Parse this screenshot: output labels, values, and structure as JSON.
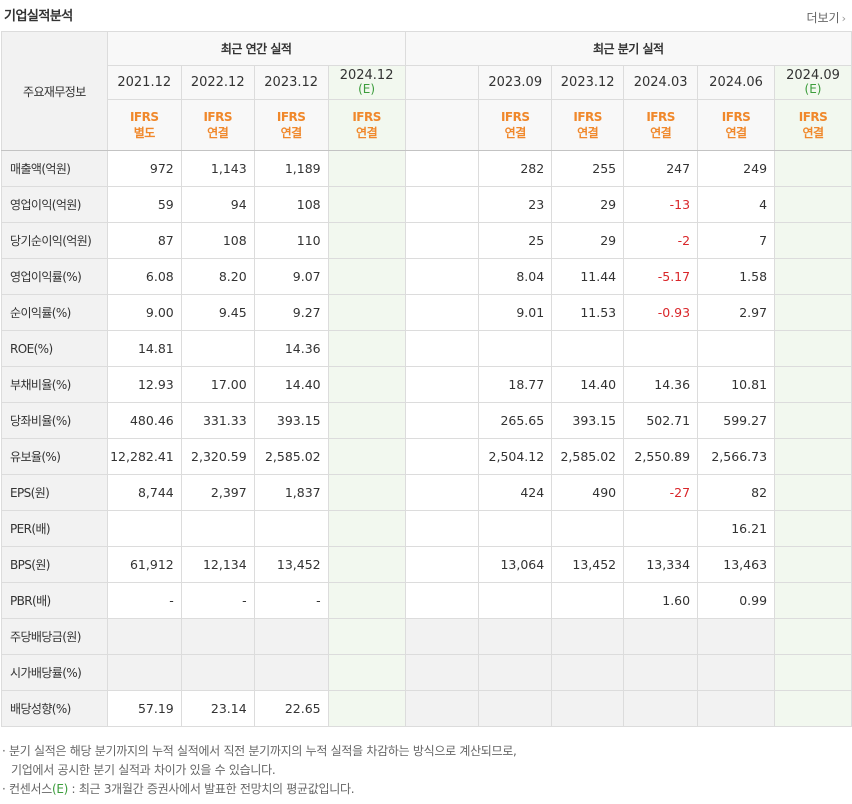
{
  "header": {
    "title": "기업실적분석",
    "more_label": "더보기",
    "more_arrow": "›"
  },
  "table": {
    "row_header_label": "주요재무정보",
    "annual_group": "최근 연간 실적",
    "quarter_group": "최근 분기 실적",
    "annual_periods": [
      {
        "period": "2021.12",
        "est": ""
      },
      {
        "period": "2022.12",
        "est": ""
      },
      {
        "period": "2023.12",
        "est": ""
      },
      {
        "period": "2024.12",
        "est": "(E)"
      }
    ],
    "quarter_periods": [
      {
        "period": "2023.09",
        "est": ""
      },
      {
        "period": "2023.12",
        "est": ""
      },
      {
        "period": "2024.03",
        "est": ""
      },
      {
        "period": "2024.06",
        "est": ""
      },
      {
        "period": "2024.09",
        "est": "(E)"
      }
    ],
    "annual_basis": [
      {
        "std": "IFRS",
        "type": "별도"
      },
      {
        "std": "IFRS",
        "type": "연결"
      },
      {
        "std": "IFRS",
        "type": "연결"
      },
      {
        "std": "IFRS",
        "type": "연결"
      }
    ],
    "quarter_basis": [
      {
        "std": "IFRS",
        "type": "연결"
      },
      {
        "std": "IFRS",
        "type": "연결"
      },
      {
        "std": "IFRS",
        "type": "연결"
      },
      {
        "std": "IFRS",
        "type": "연결"
      },
      {
        "std": "IFRS",
        "type": "연결"
      }
    ],
    "rows": [
      {
        "label": "매출액(억원)",
        "annual": [
          "972",
          "1,143",
          "1,189",
          ""
        ],
        "quarter": [
          "282",
          "255",
          "247",
          "249",
          ""
        ]
      },
      {
        "label": "영업이익(억원)",
        "annual": [
          "59",
          "94",
          "108",
          ""
        ],
        "quarter": [
          "23",
          "29",
          "-13",
          "4",
          ""
        ]
      },
      {
        "label": "당기순이익(억원)",
        "annual": [
          "87",
          "108",
          "110",
          ""
        ],
        "quarter": [
          "25",
          "29",
          "-2",
          "7",
          ""
        ]
      },
      {
        "label": "영업이익률(%)",
        "annual": [
          "6.08",
          "8.20",
          "9.07",
          ""
        ],
        "quarter": [
          "8.04",
          "11.44",
          "-5.17",
          "1.58",
          ""
        ]
      },
      {
        "label": "순이익률(%)",
        "annual": [
          "9.00",
          "9.45",
          "9.27",
          ""
        ],
        "quarter": [
          "9.01",
          "11.53",
          "-0.93",
          "2.97",
          ""
        ]
      },
      {
        "label": "ROE(%)",
        "annual": [
          "14.81",
          "",
          "14.36",
          ""
        ],
        "quarter": [
          "",
          "",
          "",
          "",
          ""
        ]
      },
      {
        "label": "부채비율(%)",
        "annual": [
          "12.93",
          "17.00",
          "14.40",
          ""
        ],
        "quarter": [
          "18.77",
          "14.40",
          "14.36",
          "10.81",
          ""
        ]
      },
      {
        "label": "당좌비율(%)",
        "annual": [
          "480.46",
          "331.33",
          "393.15",
          ""
        ],
        "quarter": [
          "265.65",
          "393.15",
          "502.71",
          "599.27",
          ""
        ]
      },
      {
        "label": "유보율(%)",
        "annual": [
          "12,282.41",
          "2,320.59",
          "2,585.02",
          ""
        ],
        "quarter": [
          "2,504.12",
          "2,585.02",
          "2,550.89",
          "2,566.73",
          ""
        ]
      },
      {
        "label": "EPS(원)",
        "annual": [
          "8,744",
          "2,397",
          "1,837",
          ""
        ],
        "quarter": [
          "424",
          "490",
          "-27",
          "82",
          ""
        ]
      },
      {
        "label": "PER(배)",
        "annual": [
          "",
          "",
          "",
          ""
        ],
        "quarter": [
          "",
          "",
          "",
          "16.21",
          ""
        ]
      },
      {
        "label": "BPS(원)",
        "annual": [
          "61,912",
          "12,134",
          "13,452",
          ""
        ],
        "quarter": [
          "13,064",
          "13,452",
          "13,334",
          "13,463",
          ""
        ]
      },
      {
        "label": "PBR(배)",
        "annual": [
          "-",
          "-",
          "-",
          ""
        ],
        "quarter": [
          "",
          "",
          "1.60",
          "0.99",
          ""
        ]
      },
      {
        "label": "주당배당금(원)",
        "annual": [
          "",
          "",
          "",
          ""
        ],
        "quarter": [
          "",
          "",
          "",
          "",
          ""
        ],
        "grey": true
      },
      {
        "label": "시가배당률(%)",
        "annual": [
          "",
          "",
          "",
          ""
        ],
        "quarter": [
          "",
          "",
          "",
          "",
          ""
        ],
        "grey": true
      },
      {
        "label": "배당성향(%)",
        "annual": [
          "57.19",
          "23.14",
          "22.65",
          ""
        ],
        "quarter": [
          "",
          "",
          "",
          "",
          ""
        ],
        "grey_quarter": true
      }
    ],
    "section_breaks": [
      3,
      6,
      9,
      13
    ]
  },
  "notes": {
    "bullet": "·",
    "line1": "분기 실적은 해당 분기까지의 누적 실적에서 직전 분기까지의 누적 실적을 차감하는 방식으로 계산되므로,",
    "line2": "기업에서 공시한 분기 실적과 차이가 있을 수 있습니다.",
    "line3_prefix": "컨센서스",
    "line3_mark": "(E)",
    "line3_suffix": " : 최근 3개월간 증권사에서 발표한 전망치의 평균값입니다."
  },
  "colors": {
    "negative": "#d9262a",
    "ifrs": "#f0882b",
    "estimate": "#3c9d3c",
    "estimate_bg": "#f2f8ef"
  }
}
